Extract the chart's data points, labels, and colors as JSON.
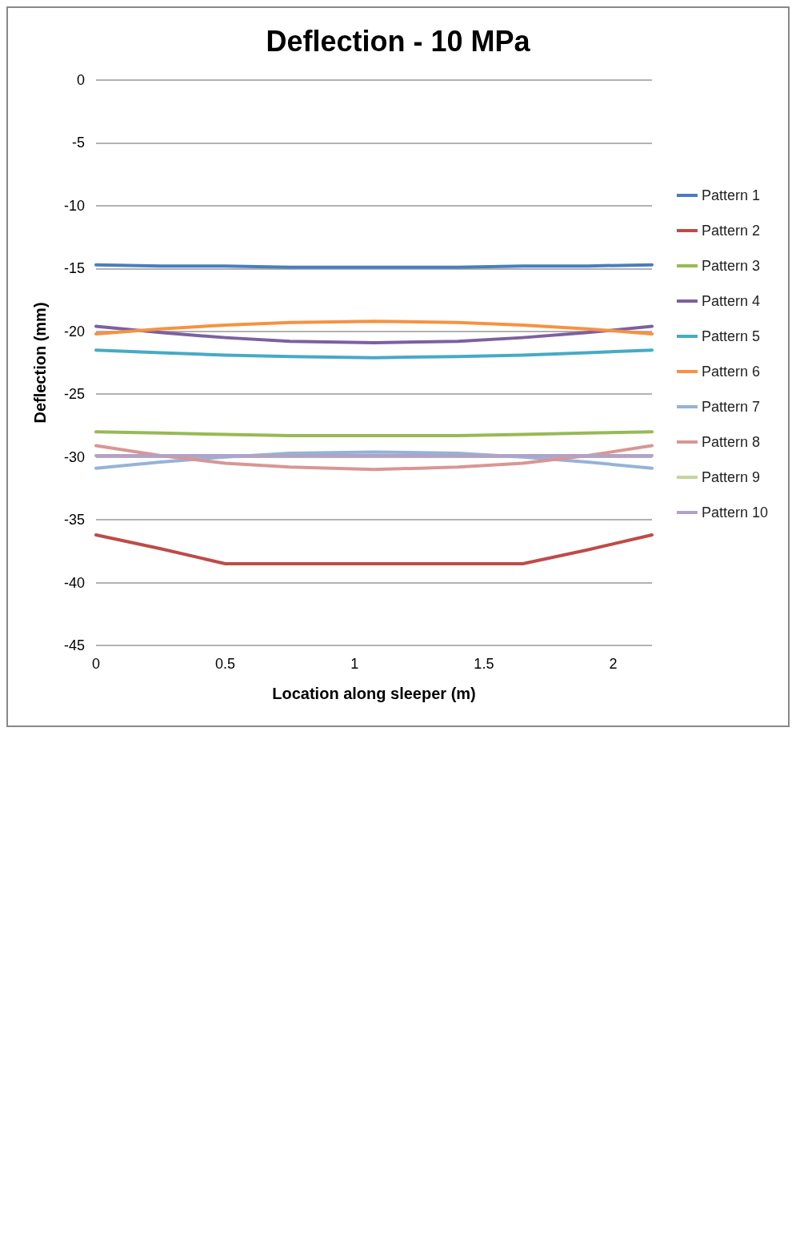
{
  "chart_data": {
    "type": "line",
    "title": "Deflection - 10 MPa",
    "xlabel": "Location along sleeper (m)",
    "ylabel": "Deflection (mm)",
    "x": [
      0,
      0.25,
      0.5,
      0.75,
      1.075,
      1.4,
      1.65,
      1.9,
      2.15
    ],
    "xlim": [
      0,
      2.15
    ],
    "xticks": [
      0,
      0.5,
      1,
      1.5,
      2
    ],
    "ylim": [
      -45,
      0
    ],
    "yticks": [
      -45,
      -40,
      -35,
      -30,
      -25,
      -20,
      -15,
      -10,
      -5,
      0
    ],
    "grid": "y",
    "legend": "right",
    "marker": "none",
    "line_style": "solid",
    "series": [
      {
        "name": "Pattern 1",
        "color": "#4a7ebb",
        "values": [
          -14.7,
          -14.8,
          -14.8,
          -14.9,
          -14.9,
          -14.9,
          -14.8,
          -14.8,
          -14.7
        ]
      },
      {
        "name": "Pattern 2",
        "color": "#be4b48",
        "values": [
          -36.2,
          -37.3,
          -38.5,
          -38.5,
          -38.5,
          -38.5,
          -38.5,
          -37.4,
          -36.2
        ]
      },
      {
        "name": "Pattern 3",
        "color": "#98b954",
        "values": [
          -28,
          -28.1,
          -28.2,
          -28.3,
          -28.3,
          -28.3,
          -28.2,
          -28.1,
          -28
        ]
      },
      {
        "name": "Pattern 4",
        "color": "#7d60a0",
        "values": [
          -19.6,
          -20.1,
          -20.5,
          -20.8,
          -20.9,
          -20.8,
          -20.5,
          -20.1,
          -19.6
        ]
      },
      {
        "name": "Pattern 5",
        "color": "#46aac5",
        "values": [
          -21.5,
          -21.7,
          -21.9,
          -22.0,
          -22.1,
          -22.0,
          -21.9,
          -21.7,
          -21.5
        ]
      },
      {
        "name": "Pattern 6",
        "color": "#f69240",
        "values": [
          -20.2,
          -19.8,
          -19.5,
          -19.3,
          -19.2,
          -19.3,
          -19.5,
          -19.8,
          -20.2
        ]
      },
      {
        "name": "Pattern 7",
        "color": "#95b3d7",
        "values": [
          -30.9,
          -30.4,
          -30.0,
          -29.7,
          -29.6,
          -29.7,
          -30.0,
          -30.4,
          -30.9
        ]
      },
      {
        "name": "Pattern 8",
        "color": "#d99694",
        "values": [
          -29.1,
          -29.9,
          -30.5,
          -30.8,
          -31.0,
          -30.8,
          -30.5,
          -29.9,
          -29.1
        ]
      },
      {
        "name": "Pattern 9",
        "color": "#c3d69b",
        "values": [
          null,
          null,
          null,
          null,
          null,
          null,
          null,
          null,
          null
        ]
      },
      {
        "name": "Pattern 10",
        "color": "#b3a2c7",
        "values": [
          -29.9,
          -29.9,
          -29.9,
          -29.9,
          -29.9,
          -29.9,
          -29.9,
          -29.9,
          -29.9
        ]
      }
    ]
  }
}
